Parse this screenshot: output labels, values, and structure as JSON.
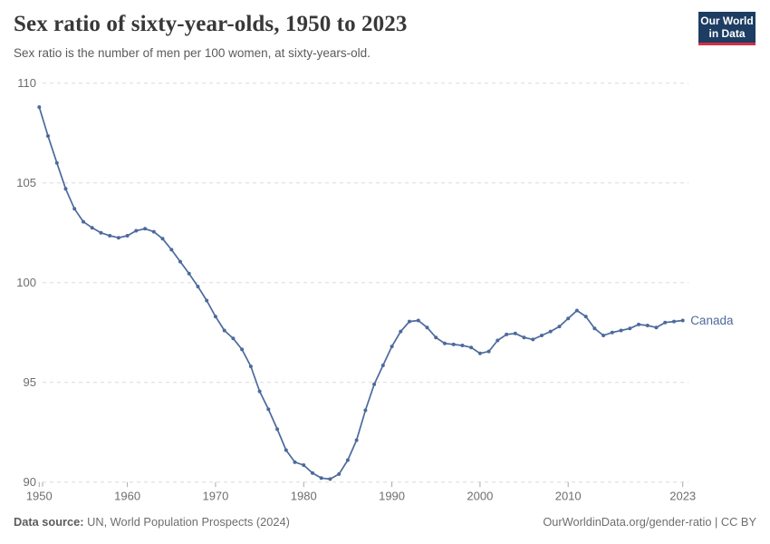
{
  "header": {
    "title": "Sex ratio of sixty-year-olds, 1950 to 2023",
    "subtitle": "Sex ratio is the number of men per 100 women, at sixty-years-old.",
    "logo_line1": "Our World",
    "logo_line2": "in Data"
  },
  "chart_data": {
    "type": "line",
    "title": "Sex ratio of sixty-year-olds, 1950 to 2023",
    "xlabel": "",
    "ylabel": "",
    "xlim": [
      1950,
      2023
    ],
    "ylim": [
      90,
      110
    ],
    "x_ticks": [
      1950,
      1960,
      1970,
      1980,
      1990,
      2000,
      2010,
      2023
    ],
    "y_ticks": [
      90,
      95,
      100,
      105,
      110
    ],
    "grid": "horizontal-dashed",
    "legend_position": "end-of-line-label",
    "series": [
      {
        "name": "Canada",
        "color": "#4c6a9c",
        "years": [
          1950,
          1951,
          1952,
          1953,
          1954,
          1955,
          1956,
          1957,
          1958,
          1959,
          1960,
          1961,
          1962,
          1963,
          1964,
          1965,
          1966,
          1967,
          1968,
          1969,
          1970,
          1971,
          1972,
          1973,
          1974,
          1975,
          1976,
          1977,
          1978,
          1979,
          1980,
          1981,
          1982,
          1983,
          1984,
          1985,
          1986,
          1987,
          1988,
          1989,
          1990,
          1991,
          1992,
          1993,
          1994,
          1995,
          1996,
          1997,
          1998,
          1999,
          2000,
          2001,
          2002,
          2003,
          2004,
          2005,
          2006,
          2007,
          2008,
          2009,
          2010,
          2011,
          2012,
          2013,
          2014,
          2015,
          2016,
          2017,
          2018,
          2019,
          2020,
          2021,
          2022,
          2023
        ],
        "values": [
          108.8,
          107.35,
          106.0,
          104.7,
          103.7,
          103.05,
          102.75,
          102.5,
          102.35,
          102.25,
          102.35,
          102.6,
          102.7,
          102.55,
          102.2,
          101.65,
          101.05,
          100.45,
          99.8,
          99.1,
          98.3,
          97.6,
          97.2,
          96.65,
          95.8,
          94.55,
          93.65,
          92.65,
          91.6,
          91.0,
          90.85,
          90.45,
          90.2,
          90.15,
          90.4,
          91.1,
          92.1,
          93.6,
          94.9,
          95.85,
          96.8,
          97.55,
          98.05,
          98.1,
          97.75,
          97.25,
          96.95,
          96.9,
          96.85,
          96.75,
          96.45,
          96.55,
          97.1,
          97.4,
          97.45,
          97.25,
          97.15,
          97.35,
          97.55,
          97.8,
          98.2,
          98.6,
          98.3,
          97.7,
          97.35,
          97.5,
          97.6,
          97.7,
          97.9,
          97.85,
          97.75,
          98.0,
          98.05,
          98.1
        ]
      }
    ]
  },
  "footer": {
    "source_label": "Data source:",
    "source_text": " UN, World Population Prospects (2024)",
    "attribution": "OurWorldinData.org/gender-ratio | CC BY"
  },
  "colors": {
    "line": "#4c6a9c",
    "end_label": "#4d6a9c",
    "gridline": "#dcdcdc",
    "tick_mark": "#a9a9a9",
    "axis_text": "#6e6e6e",
    "logo_bg": "#1d3d63",
    "logo_red": "#da2c43"
  }
}
